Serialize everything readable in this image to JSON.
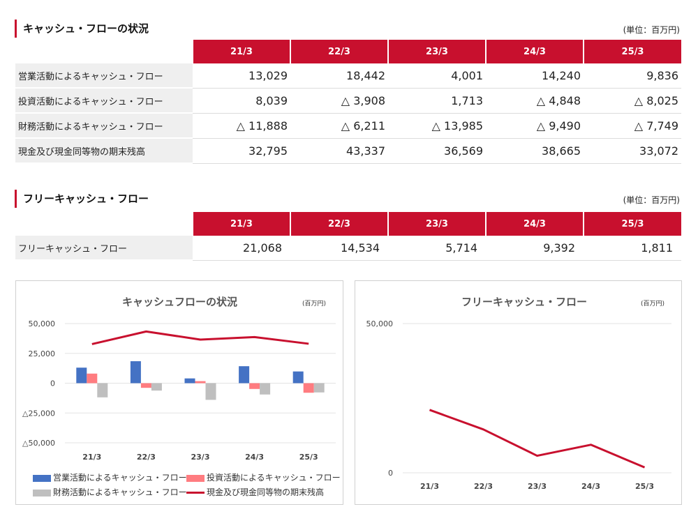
{
  "cashflow_section": {
    "title": "キャッシュ・フローの状況",
    "unit": "(単位：百万円)",
    "columns": [
      "21/3",
      "22/3",
      "23/3",
      "24/3",
      "25/3"
    ],
    "rows": [
      {
        "label": "営業活動によるキャッシュ・フロー",
        "values": [
          "13,029",
          "18,442",
          "4,001",
          "14,240",
          "9,836"
        ]
      },
      {
        "label": "投資活動によるキャッシュ・フロー",
        "values": [
          "8,039",
          "△ 3,908",
          "1,713",
          "△ 4,848",
          "△ 8,025"
        ]
      },
      {
        "label": "財務活動によるキャッシュ・フロー",
        "values": [
          "△ 11,888",
          "△ 6,211",
          "△ 13,985",
          "△ 9,490",
          "△ 7,749"
        ]
      },
      {
        "label": "現金及び現金同等物の期末残高",
        "values": [
          "32,795",
          "43,337",
          "36,569",
          "38,665",
          "33,072"
        ]
      }
    ]
  },
  "fcf_section": {
    "title": "フリーキャッシュ・フロー",
    "unit": "(単位：百万円)",
    "columns": [
      "21/3",
      "22/3",
      "23/3",
      "24/3",
      "25/3"
    ],
    "rows": [
      {
        "label": "フリーキャッシュ・フロー",
        "values": [
          "21,068",
          "14,534",
          "5,714",
          "9,392",
          "1,811"
        ]
      }
    ]
  },
  "colors": {
    "accent": "#c8102e",
    "operating": "#4472c4",
    "investing": "#ff7c80",
    "financing": "#bfbfbf",
    "balance": "#c8102e"
  },
  "chart_data": [
    {
      "type": "bar",
      "title": "キャッシュフローの状況",
      "unit": "(百万円)",
      "categories": [
        "21/3",
        "22/3",
        "23/3",
        "24/3",
        "25/3"
      ],
      "ylim": [
        -50000,
        50000
      ],
      "yticks": [
        50000,
        25000,
        0,
        -25000,
        -50000
      ],
      "ytick_labels": [
        "50,000",
        "25,000",
        "0",
        "△25,000",
        "△50,000"
      ],
      "grid": true,
      "legend": "bottom",
      "series": [
        {
          "name": "営業活動によるキャッシュ・フロー",
          "type": "bar",
          "color": "#4472c4",
          "values": [
            13029,
            18442,
            4001,
            14240,
            9836
          ]
        },
        {
          "name": "投資活動によるキャッシュ・フロー",
          "type": "bar",
          "color": "#ff7c80",
          "values": [
            8039,
            -3908,
            1713,
            -4848,
            -8025
          ]
        },
        {
          "name": "財務活動によるキャッシュ・フロー",
          "type": "bar",
          "color": "#bfbfbf",
          "values": [
            -11888,
            -6211,
            -13985,
            -9490,
            -7749
          ]
        },
        {
          "name": "現金及び現金同等物の期末残高",
          "type": "line",
          "color": "#c8102e",
          "values": [
            32795,
            43337,
            36569,
            38665,
            33072
          ]
        }
      ]
    },
    {
      "type": "line",
      "title": "フリーキャッシュ・フロー",
      "unit": "(百万円)",
      "categories": [
        "21/3",
        "22/3",
        "23/3",
        "24/3",
        "25/3"
      ],
      "ylim": [
        0,
        50000
      ],
      "yticks": [
        50000,
        0
      ],
      "ytick_labels": [
        "50,000",
        "0"
      ],
      "grid": true,
      "series": [
        {
          "name": "フリーキャッシュ・フロー",
          "color": "#c8102e",
          "values": [
            21068,
            14534,
            5714,
            9392,
            1811
          ]
        }
      ]
    }
  ]
}
